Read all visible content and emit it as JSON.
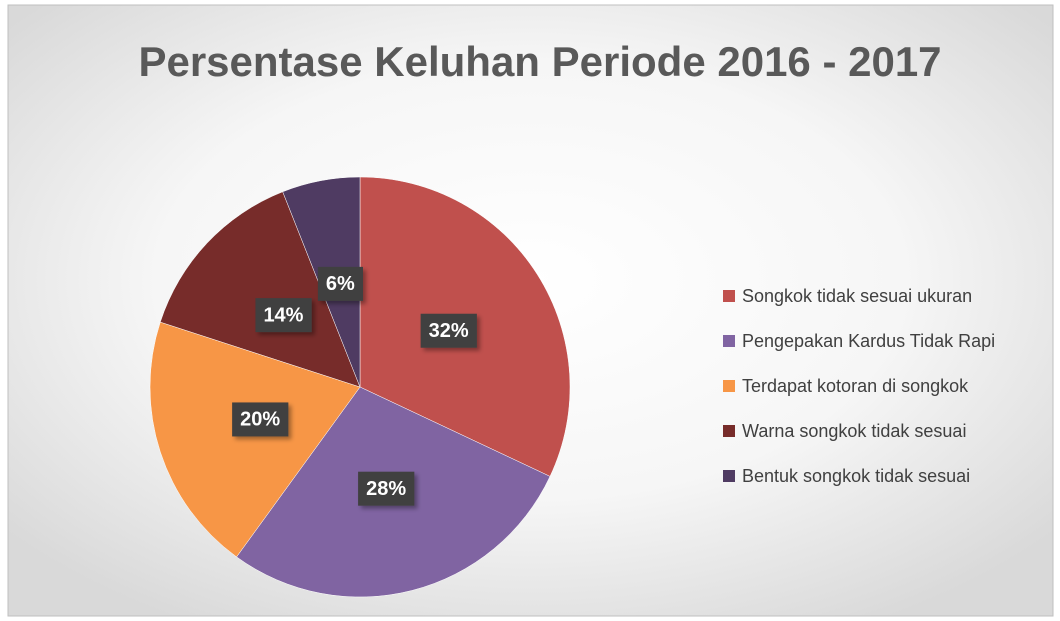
{
  "chart_data": {
    "type": "pie",
    "title": "Persentase Keluhan Periode 2016 - 2017",
    "categories": [
      "Songkok tidak sesuai ukuran",
      "Pengepakan Kardus Tidak Rapi",
      "Terdapat kotoran di songkok",
      "Warna songkok tidak sesuai",
      "Bentuk songkok tidak sesuai"
    ],
    "values": [
      32,
      28,
      20,
      14,
      6
    ],
    "value_labels": [
      "32%",
      "28%",
      "20%",
      "14%",
      "6%"
    ],
    "colors": [
      "#c0504d",
      "#8064a2",
      "#f79646",
      "#772c2a",
      "#4f3b62"
    ],
    "legend": "right"
  }
}
